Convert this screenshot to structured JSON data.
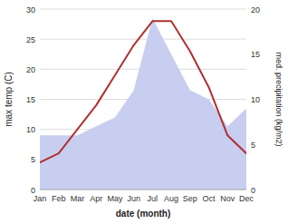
{
  "chart_data": {
    "type": "line",
    "categories": [
      "Jan",
      "Feb",
      "Mar",
      "Apr",
      "May",
      "Jun",
      "Jul",
      "Aug",
      "Sep",
      "Oct",
      "Nov",
      "Dec"
    ],
    "series": [
      {
        "type": "area",
        "axis": "y2",
        "color": "#c8cef0",
        "values": [
          6.0,
          6.0,
          6.0,
          7.0,
          8.0,
          11.0,
          19.0,
          15.0,
          11.0,
          10.0,
          7.0,
          9.0
        ]
      },
      {
        "type": "line",
        "color": "#b03030",
        "values": [
          4.5,
          6.0,
          10.0,
          14.0,
          19.0,
          24.0,
          28.0,
          28.0,
          23.0,
          17.0,
          9.0,
          6.0
        ]
      }
    ],
    "xlabel": "date (month)",
    "ylabel": "max temp (C)",
    "y2label": "med. precipitation (kg/m2)",
    "ylim": [
      0,
      30
    ],
    "yticks": [
      0,
      5,
      10,
      15,
      20,
      25,
      30
    ],
    "y2lim": [
      0,
      20
    ],
    "y2ticks": [
      0,
      5,
      10,
      15,
      20
    ],
    "grid": true
  }
}
